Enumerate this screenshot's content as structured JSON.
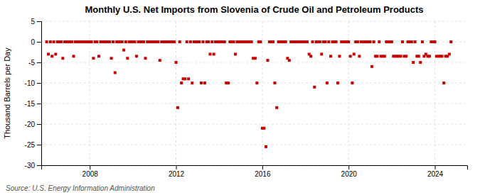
{
  "chart_data": {
    "type": "scatter",
    "title": "Monthly U.S. Net Imports from Slovenia of Crude Oil and Petroleum Products",
    "ylabel": "Thousand Barrels per Day",
    "source": "Source: U.S. Energy Information Administration",
    "color": "#cc0000",
    "marker": "square",
    "grid": true,
    "xlim": [
      2005.75,
      2025.5
    ],
    "xticks": [
      2008,
      2012,
      2016,
      2020,
      2024
    ],
    "ylim": [
      -30,
      5
    ],
    "yticks": [
      5,
      0,
      -5,
      -10,
      -15,
      -20,
      -25,
      -30
    ],
    "x": [
      2006.0,
      2006.08,
      2006.17,
      2006.25,
      2006.33,
      2006.42,
      2006.5,
      2006.58,
      2006.67,
      2006.75,
      2006.83,
      2006.92,
      2007.0,
      2007.08,
      2007.17,
      2007.25,
      2007.33,
      2007.42,
      2007.5,
      2007.58,
      2007.67,
      2007.75,
      2007.83,
      2007.92,
      2008.0,
      2008.08,
      2008.17,
      2008.25,
      2008.33,
      2008.42,
      2008.5,
      2008.58,
      2008.67,
      2008.75,
      2008.83,
      2008.92,
      2009.0,
      2009.08,
      2009.17,
      2009.25,
      2009.33,
      2009.42,
      2009.5,
      2009.58,
      2009.67,
      2009.75,
      2009.83,
      2009.92,
      2010.0,
      2010.08,
      2010.17,
      2010.25,
      2010.33,
      2010.42,
      2010.5,
      2010.58,
      2010.67,
      2010.75,
      2010.83,
      2010.92,
      2011.0,
      2011.08,
      2011.17,
      2011.25,
      2011.33,
      2011.42,
      2011.5,
      2011.58,
      2011.67,
      2011.75,
      2011.83,
      2011.92,
      2012.0,
      2012.08,
      2012.17,
      2012.25,
      2012.33,
      2012.42,
      2012.5,
      2012.58,
      2012.67,
      2012.75,
      2012.83,
      2012.92,
      2013.0,
      2013.08,
      2013.17,
      2013.25,
      2013.33,
      2013.42,
      2013.5,
      2013.58,
      2013.67,
      2013.75,
      2013.83,
      2013.92,
      2014.0,
      2014.08,
      2014.17,
      2014.25,
      2014.33,
      2014.42,
      2014.5,
      2014.58,
      2014.67,
      2014.75,
      2014.83,
      2014.92,
      2015.0,
      2015.08,
      2015.17,
      2015.25,
      2015.33,
      2015.42,
      2015.5,
      2015.58,
      2015.67,
      2015.75,
      2015.83,
      2015.92,
      2016.0,
      2016.08,
      2016.17,
      2016.25,
      2016.33,
      2016.42,
      2016.5,
      2016.58,
      2016.67,
      2016.75,
      2016.83,
      2016.92,
      2017.0,
      2017.08,
      2017.17,
      2017.25,
      2017.33,
      2017.42,
      2017.5,
      2017.58,
      2017.67,
      2017.75,
      2017.83,
      2017.92,
      2018.0,
      2018.08,
      2018.17,
      2018.25,
      2018.33,
      2018.42,
      2018.5,
      2018.58,
      2018.67,
      2018.75,
      2018.83,
      2018.92,
      2019.0,
      2019.08,
      2019.17,
      2019.25,
      2019.33,
      2019.42,
      2019.5,
      2019.58,
      2019.67,
      2019.75,
      2019.83,
      2019.92,
      2020.0,
      2020.08,
      2020.17,
      2020.25,
      2020.33,
      2020.42,
      2020.5,
      2020.58,
      2020.67,
      2020.75,
      2020.83,
      2020.92,
      2021.0,
      2021.08,
      2021.17,
      2021.25,
      2021.33,
      2021.42,
      2021.5,
      2021.58,
      2021.67,
      2021.75,
      2021.83,
      2021.92,
      2022.0,
      2022.08,
      2022.17,
      2022.25,
      2022.33,
      2022.42,
      2022.5,
      2022.58,
      2022.67,
      2022.75,
      2022.83,
      2022.92,
      2023.0,
      2023.08,
      2023.17,
      2023.25,
      2023.33,
      2023.42,
      2023.5,
      2023.58,
      2023.67,
      2023.75,
      2023.83,
      2023.92,
      2024.0,
      2024.08,
      2024.17,
      2024.25,
      2024.33,
      2024.42,
      2024.5,
      2024.58,
      2024.67,
      2024.75
    ],
    "values": [
      0,
      -3,
      0,
      -3.5,
      0,
      -3,
      0,
      0,
      0,
      -4,
      0,
      0,
      0,
      0,
      0,
      -3.5,
      0,
      0,
      0,
      0,
      0,
      0,
      0,
      0,
      0,
      0,
      -4,
      0,
      0,
      -3.5,
      0,
      0,
      0,
      0,
      0,
      0,
      -4,
      0,
      -7.5,
      0,
      0,
      0,
      0,
      -2,
      0,
      -4,
      0,
      0,
      0,
      0,
      -3.5,
      0,
      0,
      0,
      0,
      -4,
      0,
      0,
      0,
      0,
      0,
      0,
      0,
      -4.5,
      0,
      0,
      0,
      0,
      0,
      0,
      0,
      0,
      -5,
      -16,
      0,
      -10,
      -9,
      -9,
      0,
      -9,
      0,
      -10,
      0,
      0,
      0,
      0,
      -10,
      0,
      -10,
      0,
      0,
      -3,
      0,
      -3,
      0,
      0,
      0,
      0,
      0,
      0,
      -10,
      -10,
      0,
      0,
      0,
      -3,
      0,
      0,
      0,
      0,
      0,
      0,
      0,
      0,
      0,
      -4,
      -4,
      -10,
      0,
      0,
      -21,
      -21,
      -25.5,
      -4.5,
      0,
      0,
      0,
      -10,
      -16,
      0,
      0,
      0,
      0,
      0,
      -4,
      -4.5,
      0,
      0,
      0,
      0,
      0,
      0,
      0,
      0,
      0,
      0,
      -3,
      -3.5,
      0,
      -11,
      0,
      0,
      0,
      -3,
      0,
      0,
      -10,
      0,
      -3.5,
      0,
      0,
      0,
      -10,
      -3.5,
      0,
      0,
      0,
      0,
      0,
      -3.5,
      -10,
      -3,
      0,
      0,
      -3.5,
      0,
      0,
      0,
      0,
      0,
      0,
      -6,
      0,
      -3.5,
      -3.5,
      0,
      -3.5,
      -3.5,
      -3.5,
      0,
      0,
      0,
      0,
      -3.5,
      -3.5,
      -3.5,
      -3.5,
      -3.5,
      0,
      -3.5,
      -3.5,
      0,
      0,
      0,
      -5,
      0,
      -3.5,
      -3.5,
      -5,
      0,
      -3.5,
      -3,
      -3.5,
      -3.5,
      0,
      0,
      0,
      -3.5,
      -3.5,
      -3.5,
      -3.5,
      -10,
      -3.5,
      -3.5,
      -3,
      0
    ]
  }
}
